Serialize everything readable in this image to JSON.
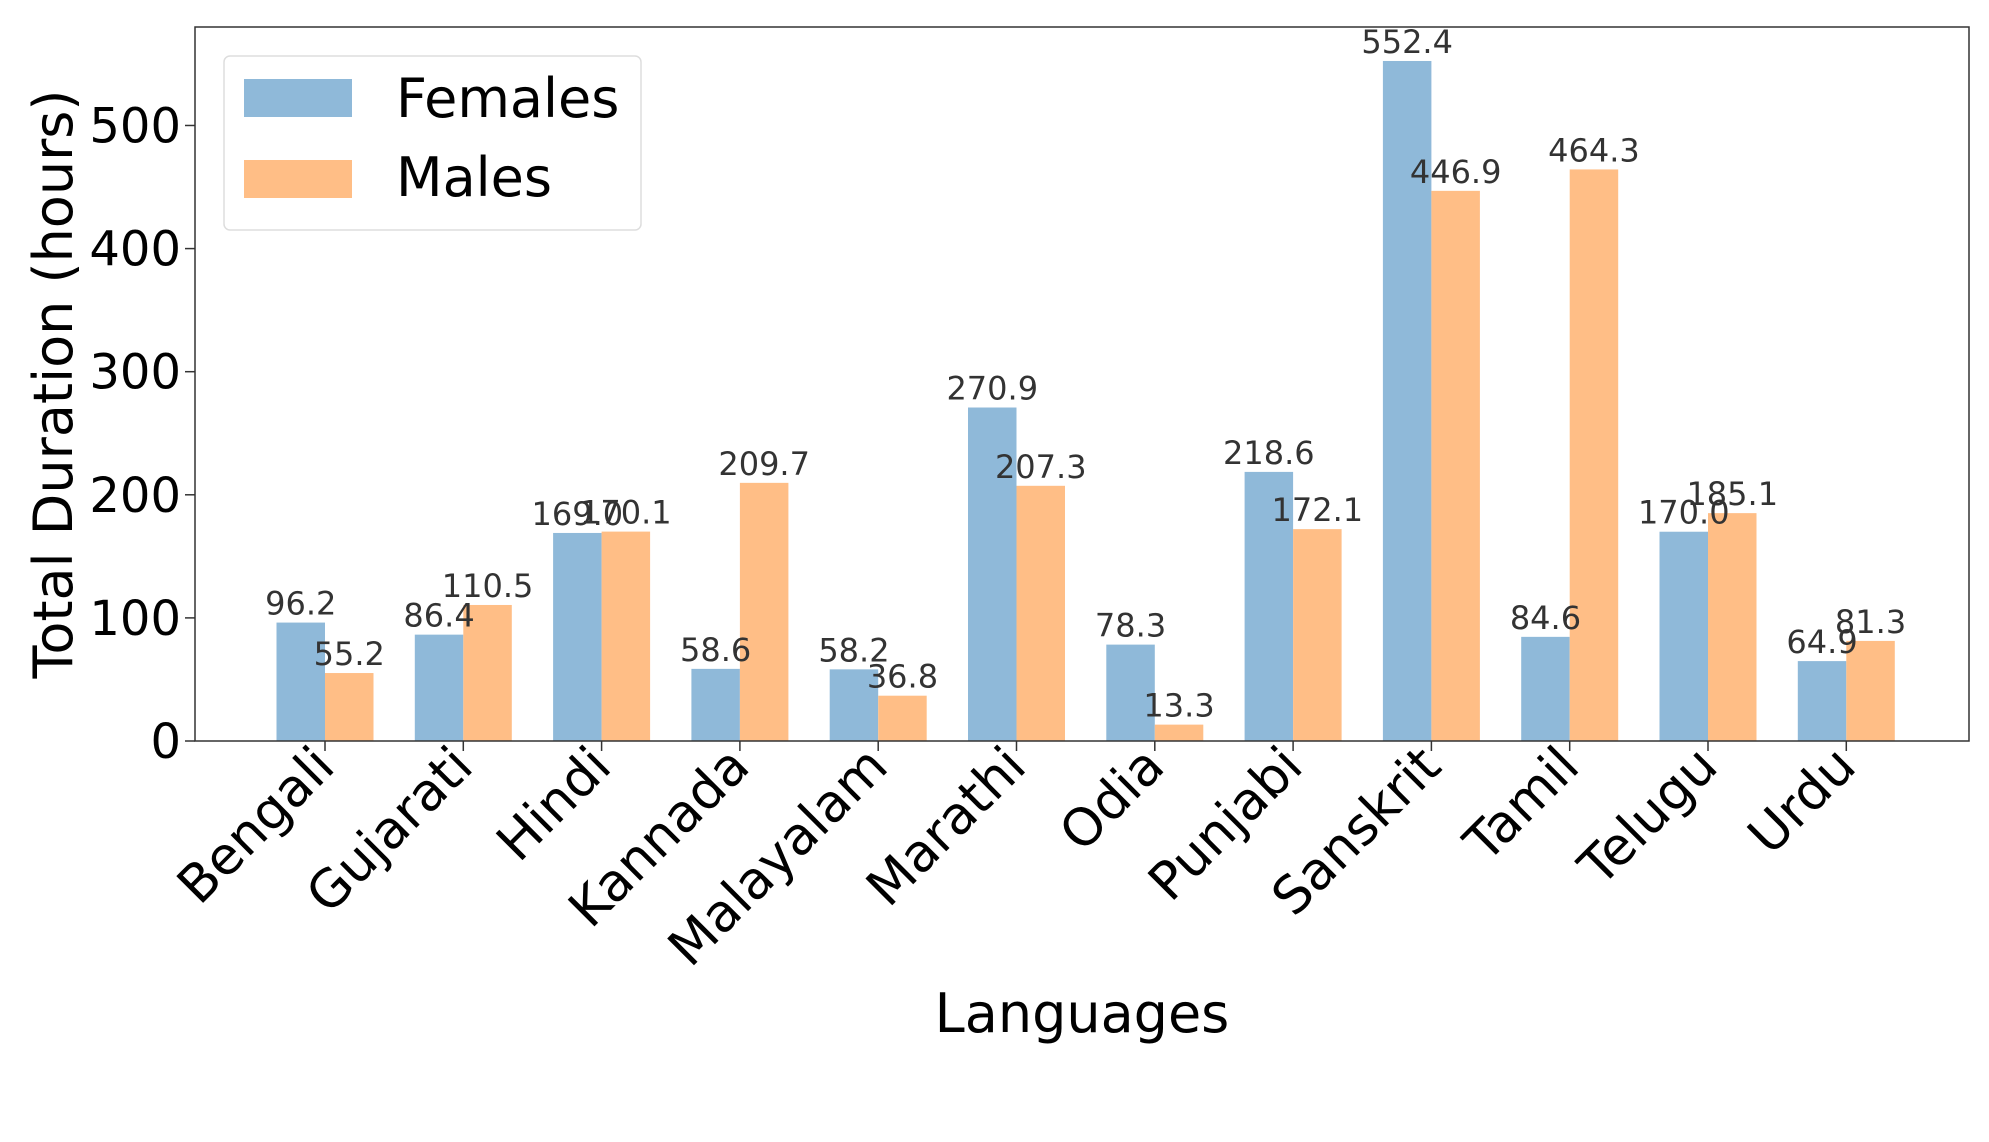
{
  "chart_data": {
    "type": "bar",
    "xlabel": "Languages",
    "ylabel": "Total Duration (hours)",
    "ylim": [
      0,
      580
    ],
    "yticks": [
      0,
      100,
      200,
      300,
      400,
      500
    ],
    "grid": false,
    "legend_position": "top-left",
    "categories": [
      "Bengali",
      "Gujarati",
      "Hindi",
      "Kannada",
      "Malayalam",
      "Marathi",
      "Odia",
      "Punjabi",
      "Sanskrit",
      "Tamil",
      "Telugu",
      "Urdu"
    ],
    "series": [
      {
        "name": "Females",
        "color": "#8fb9d9",
        "values": [
          96.2,
          86.4,
          169.0,
          58.6,
          58.2,
          270.9,
          78.3,
          218.6,
          552.4,
          84.6,
          170.0,
          64.9
        ],
        "labels": [
          "96.2",
          "86.4",
          "169.0",
          "58.6",
          "58.2",
          "270.9",
          "78.3",
          "218.6",
          "552.4",
          "84.6",
          "170.0",
          "64.9"
        ]
      },
      {
        "name": "Males",
        "color": "#ffbe86",
        "values": [
          55.2,
          110.5,
          170.1,
          209.7,
          36.8,
          207.3,
          13.3,
          172.1,
          446.9,
          464.3,
          185.1,
          81.3
        ],
        "labels": [
          "55.2",
          "110.5",
          "170.1",
          "209.7",
          "36.8",
          "207.3",
          "13.3",
          "172.1",
          "446.9",
          "464.3",
          "185.1",
          "81.3"
        ]
      }
    ]
  }
}
